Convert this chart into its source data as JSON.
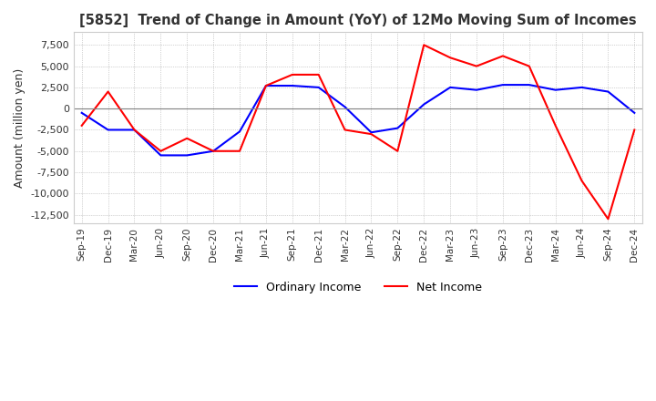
{
  "title": "[5852]  Trend of Change in Amount (YoY) of 12Mo Moving Sum of Incomes",
  "ylabel": "Amount (million yen)",
  "ylim": [
    -13500,
    9000
  ],
  "yticks": [
    7500,
    5000,
    2500,
    0,
    -2500,
    -5000,
    -7500,
    -10000,
    -12500
  ],
  "x_labels": [
    "Sep-19",
    "Dec-19",
    "Mar-20",
    "Jun-20",
    "Sep-20",
    "Dec-20",
    "Mar-21",
    "Jun-21",
    "Sep-21",
    "Dec-21",
    "Mar-22",
    "Jun-22",
    "Sep-22",
    "Dec-22",
    "Mar-23",
    "Jun-23",
    "Sep-23",
    "Dec-23",
    "Mar-24",
    "Jun-24",
    "Sep-24",
    "Dec-24"
  ],
  "ordinary_income": [
    -500,
    -2500,
    -2500,
    -5500,
    -5500,
    -5000,
    -2700,
    2700,
    2700,
    2500,
    200,
    -2800,
    -2300,
    500,
    2500,
    2200,
    2800,
    2800,
    2200,
    2500,
    2000,
    -500
  ],
  "net_income": [
    -2000,
    2000,
    -2500,
    -5000,
    -3500,
    -5000,
    -5000,
    2700,
    4000,
    4000,
    -2500,
    -3000,
    -5000,
    7500,
    6000,
    5000,
    6200,
    5000,
    -2000,
    -8500,
    -13000,
    -2500
  ],
  "ordinary_color": "#0000ff",
  "net_color": "#ff0000",
  "grid_color": "#aaaaaa",
  "background_color": "#ffffff",
  "legend_ordinary": "Ordinary Income",
  "legend_net": "Net Income"
}
